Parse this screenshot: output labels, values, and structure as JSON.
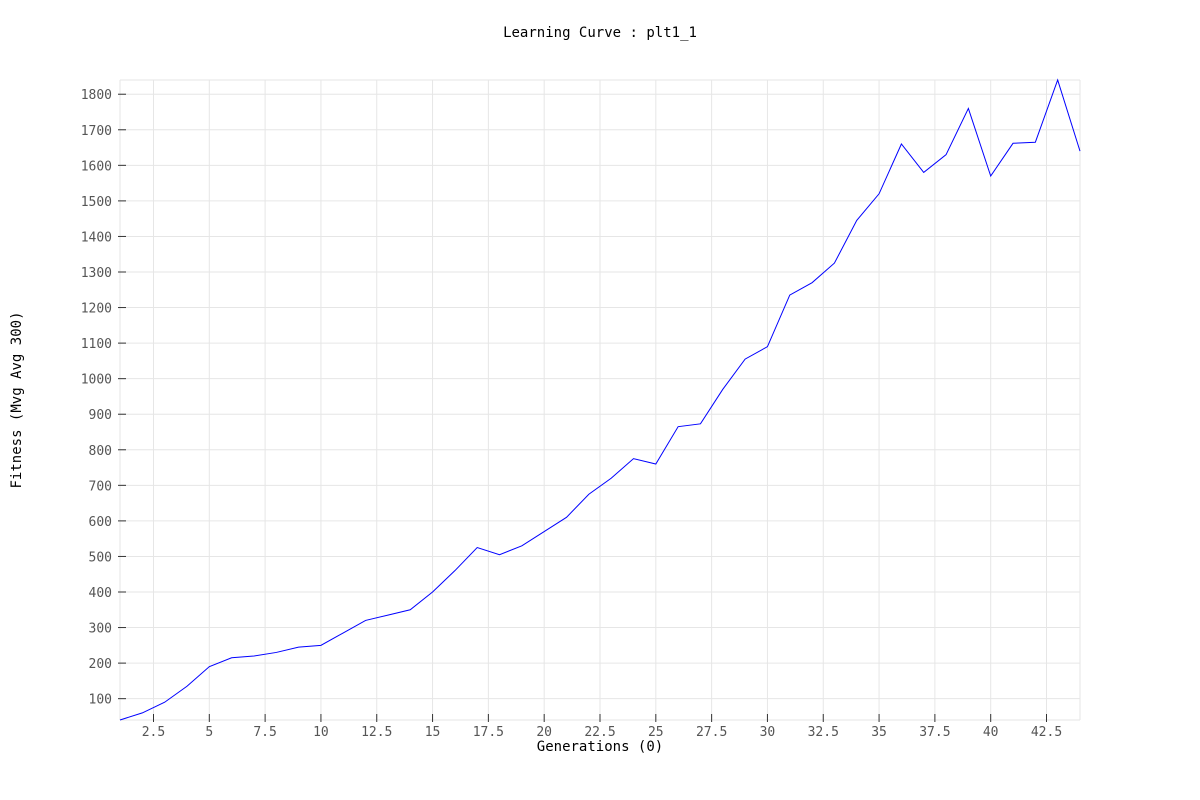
{
  "chart_data": {
    "type": "line",
    "title": "Learning Curve : plt1_1",
    "xlabel": "Generations (0)",
    "ylabel": "Fitness (Mvg Avg 300)",
    "xlim": [
      1,
      44
    ],
    "ylim": [
      40,
      1840
    ],
    "xticks": [
      2.5,
      5,
      7.5,
      10,
      12.5,
      15,
      17.5,
      20,
      22.5,
      25,
      27.5,
      30,
      32.5,
      35,
      37.5,
      40,
      42.5
    ],
    "xtick_labels": [
      "2.5",
      "5",
      "7.5",
      "10",
      "12.5",
      "15",
      "17.5",
      "20",
      "22.5",
      "25",
      "27.5",
      "30",
      "32.5",
      "35",
      "37.5",
      "40",
      "42.5"
    ],
    "yticks": [
      100,
      200,
      300,
      400,
      500,
      600,
      700,
      800,
      900,
      1000,
      1100,
      1200,
      1300,
      1400,
      1500,
      1600,
      1700,
      1800
    ],
    "ytick_labels": [
      "100",
      "200",
      "300",
      "400",
      "500",
      "600",
      "700",
      "800",
      "900",
      "1000",
      "1100",
      "1200",
      "1300",
      "1400",
      "1500",
      "1600",
      "1700",
      "1800"
    ],
    "grid": true,
    "legend": "none",
    "series": [
      {
        "color": "#0000ff",
        "x": [
          1,
          2,
          3,
          4,
          5,
          6,
          7,
          8,
          9,
          10,
          11,
          12,
          13,
          14,
          15,
          16,
          17,
          18,
          19,
          20,
          21,
          22,
          23,
          24,
          25,
          26,
          27,
          28,
          29,
          30,
          31,
          32,
          33,
          34,
          35,
          36,
          37,
          38,
          39,
          40,
          41,
          42,
          43,
          44
        ],
        "y": [
          40,
          60,
          90,
          135,
          190,
          215,
          220,
          230,
          245,
          250,
          285,
          320,
          335,
          350,
          400,
          460,
          525,
          505,
          530,
          570,
          610,
          675,
          720,
          775,
          760,
          865,
          873,
          970,
          1055,
          1090,
          1235,
          1270,
          1325,
          1445,
          1520,
          1660,
          1580,
          1630,
          1760,
          1570,
          1662,
          1665,
          1840,
          1640
        ]
      }
    ]
  }
}
